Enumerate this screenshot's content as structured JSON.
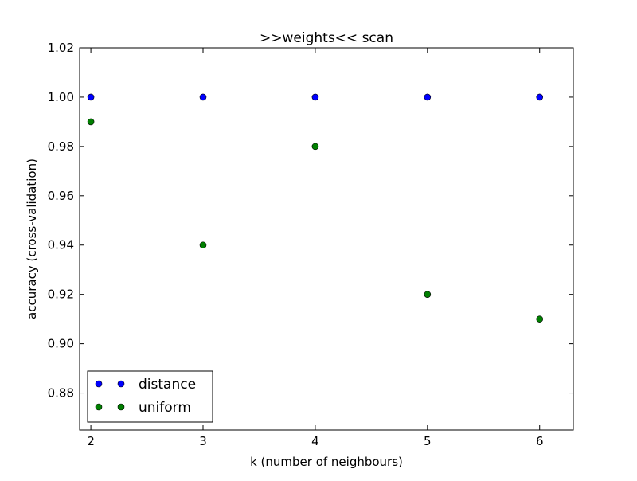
{
  "chart_data": {
    "type": "scatter",
    "title": ">>weights<< scan",
    "xlabel": "k (number of neighbours)",
    "ylabel": "accuracy (cross-validation)",
    "xlim": [
      1.9,
      6.3
    ],
    "ylim": [
      0.865,
      1.02
    ],
    "x_ticks": [
      2,
      3,
      4,
      5,
      6
    ],
    "x_tick_labels": [
      "2",
      "3",
      "4",
      "5",
      "6"
    ],
    "y_ticks": [
      0.88,
      0.9,
      0.92,
      0.94,
      0.96,
      0.98,
      1.0,
      1.02
    ],
    "y_tick_labels": [
      "0.88",
      "0.90",
      "0.92",
      "0.94",
      "0.96",
      "0.98",
      "1.00",
      "1.02"
    ],
    "grid": false,
    "legend_position": "lower-left",
    "x": [
      2,
      3,
      4,
      5,
      6
    ],
    "series": [
      {
        "name": "distance",
        "color": "#0000ff",
        "values": [
          1.0,
          1.0,
          1.0,
          1.0,
          1.0
        ]
      },
      {
        "name": "uniform",
        "color": "#007f00",
        "values": [
          0.99,
          0.94,
          0.98,
          0.92,
          0.91
        ]
      }
    ]
  }
}
